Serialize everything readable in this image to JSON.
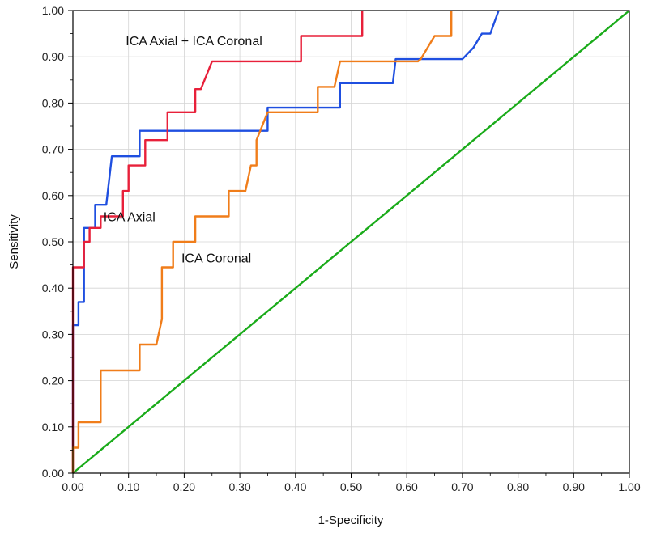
{
  "chart_data": {
    "type": "line",
    "title": "",
    "xlabel": "1-Specificity",
    "ylabel": "Sensitivity",
    "xlim": [
      0,
      1
    ],
    "ylim": [
      0,
      1
    ],
    "grid": true,
    "x_ticks": [
      "0.00",
      "0.10",
      "0.20",
      "0.30",
      "0.40",
      "0.50",
      "0.60",
      "0.70",
      "0.80",
      "0.90",
      "1.00"
    ],
    "y_ticks": [
      "0.00",
      "0.10",
      "0.20",
      "0.30",
      "0.40",
      "0.50",
      "0.60",
      "0.70",
      "0.80",
      "0.90",
      "1.00"
    ],
    "annotations": [
      {
        "id": "axial_coronal",
        "text": "ICA Axial + ICA Coronal",
        "x": 0.095,
        "y": 0.925
      },
      {
        "id": "axial",
        "text": "ICA Axial",
        "x": 0.055,
        "y": 0.545
      },
      {
        "id": "coronal",
        "text": "ICA Coronal",
        "x": 0.195,
        "y": 0.455
      }
    ],
    "series": [
      {
        "id": "reference",
        "color": "#1aab1a",
        "x": [
          0,
          1
        ],
        "y": [
          0,
          1
        ]
      },
      {
        "id": "axial",
        "color": "#1f4fe0",
        "x": [
          0.0,
          0.0,
          0.01,
          0.01,
          0.02,
          0.02,
          0.04,
          0.04,
          0.06,
          0.07,
          0.12,
          0.12,
          0.35,
          0.35,
          0.48,
          0.48,
          0.575,
          0.58,
          0.7,
          0.72,
          0.735,
          0.75,
          0.765
        ],
        "y": [
          0.0,
          0.32,
          0.32,
          0.37,
          0.37,
          0.53,
          0.53,
          0.58,
          0.58,
          0.685,
          0.685,
          0.74,
          0.74,
          0.79,
          0.79,
          0.843,
          0.843,
          0.895,
          0.895,
          0.92,
          0.95,
          0.95,
          1.0
        ]
      },
      {
        "id": "axial_coronal",
        "color": "#e8203a",
        "x": [
          0.0,
          0.0,
          0.02,
          0.02,
          0.03,
          0.03,
          0.05,
          0.05,
          0.09,
          0.09,
          0.1,
          0.1,
          0.13,
          0.13,
          0.17,
          0.17,
          0.22,
          0.22,
          0.23,
          0.25,
          0.41,
          0.41,
          0.52,
          0.52
        ],
        "y": [
          0.0,
          0.445,
          0.445,
          0.5,
          0.5,
          0.53,
          0.53,
          0.555,
          0.555,
          0.61,
          0.61,
          0.665,
          0.665,
          0.72,
          0.72,
          0.78,
          0.78,
          0.83,
          0.83,
          0.89,
          0.89,
          0.945,
          0.945,
          1.0
        ]
      },
      {
        "id": "coronal",
        "color": "#f07d1a",
        "x": [
          0.0,
          0.0,
          0.01,
          0.01,
          0.05,
          0.05,
          0.12,
          0.12,
          0.15,
          0.16,
          0.16,
          0.18,
          0.18,
          0.22,
          0.22,
          0.28,
          0.28,
          0.31,
          0.32,
          0.33,
          0.33,
          0.35,
          0.44,
          0.44,
          0.47,
          0.48,
          0.62,
          0.625,
          0.65,
          0.65,
          0.68,
          0.68
        ],
        "y": [
          0.0,
          0.055,
          0.055,
          0.11,
          0.11,
          0.222,
          0.222,
          0.278,
          0.278,
          0.333,
          0.445,
          0.445,
          0.5,
          0.5,
          0.555,
          0.555,
          0.61,
          0.61,
          0.665,
          0.665,
          0.72,
          0.78,
          0.78,
          0.835,
          0.835,
          0.89,
          0.89,
          0.895,
          0.945,
          0.945,
          0.945,
          1.0
        ]
      }
    ]
  }
}
